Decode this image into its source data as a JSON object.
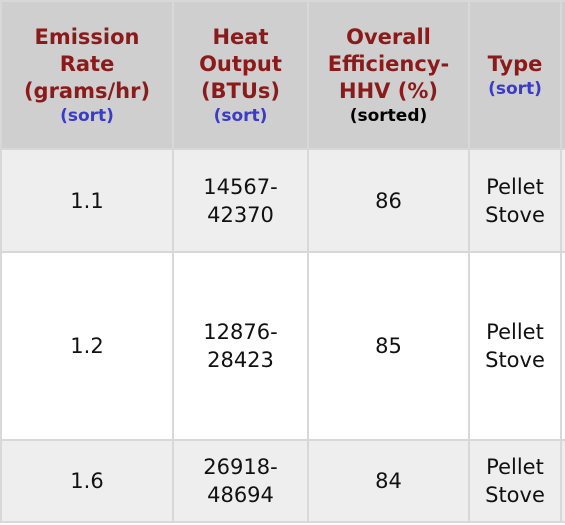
{
  "table": {
    "headers": [
      {
        "lines": [
          "Emission",
          "Rate",
          "(grams/hr)"
        ],
        "sort": "(sort)"
      },
      {
        "lines": [
          "Heat",
          "Output",
          "(BTUs)"
        ],
        "sort": "(sort)"
      },
      {
        "lines": [
          "Overall",
          "Efficiency-",
          "HHV (%)"
        ],
        "sort": "(sorted)"
      },
      {
        "lines": [
          "Type"
        ],
        "sort": "(sort)"
      }
    ],
    "rows": [
      [
        "1.1",
        "14567-42370",
        "86",
        "Pellet Stove"
      ],
      [
        "1.2",
        "12876-28423",
        "85",
        "Pellet Stove"
      ],
      [
        "1.6",
        "26918-48694",
        "84",
        "Pellet Stove"
      ]
    ]
  }
}
